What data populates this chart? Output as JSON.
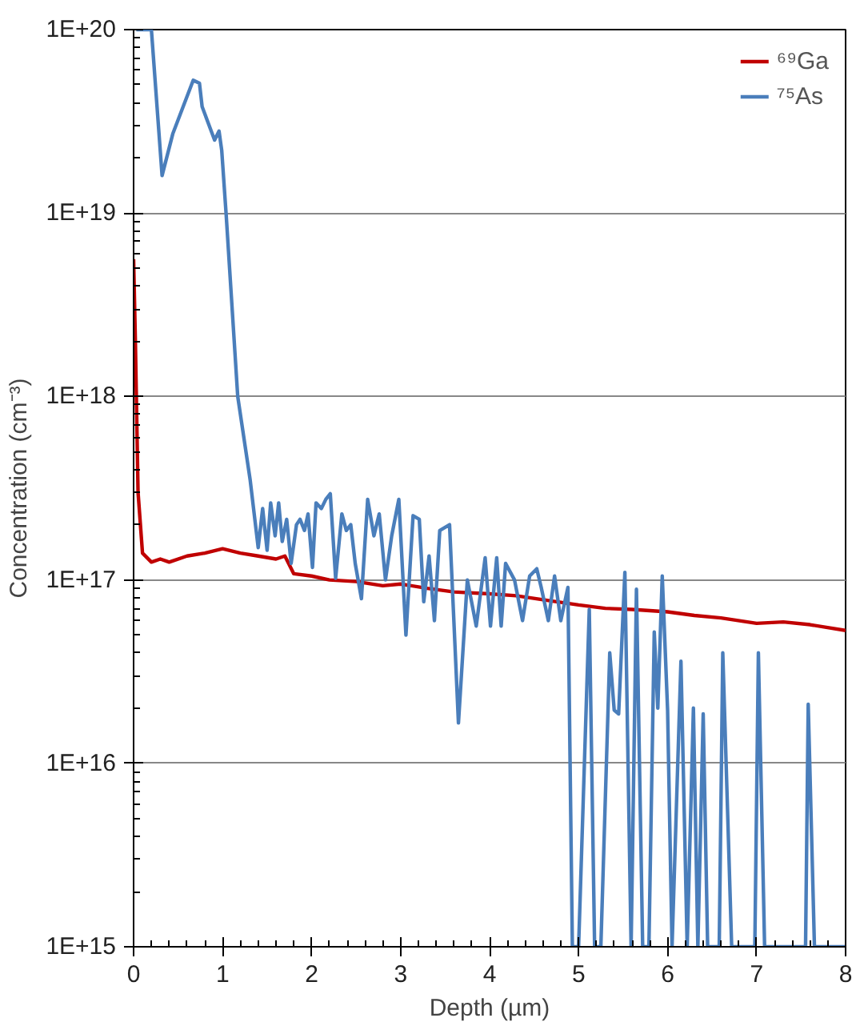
{
  "chart_data": {
    "type": "line",
    "xlabel": "Depth (µm)",
    "ylabel": "Concentration (cm⁻³)",
    "log": "y",
    "grid": "y",
    "legend": "top right",
    "line_style": "solid",
    "marker": "none",
    "xlim": [
      0,
      8
    ],
    "xticks": [
      0,
      1,
      2,
      3,
      4,
      5,
      6,
      7,
      8
    ],
    "ylim": [
      1000000000000000.0,
      1e+20
    ],
    "yticks": [
      {
        "value": 1000000000000000.0,
        "label": "1E+15"
      },
      {
        "value": 1e+16,
        "label": "1E+16"
      },
      {
        "value": 1e+17,
        "label": "1E+17"
      },
      {
        "value": 1e+18,
        "label": "1E+18"
      },
      {
        "value": 1e+19,
        "label": "1E+19"
      },
      {
        "value": 1e+20,
        "label": "1E+20"
      }
    ],
    "series": [
      {
        "name": "⁶⁹Ga",
        "color": "#c00000",
        "x": [
          0,
          0.02,
          0.05,
          0.1,
          0.2,
          0.3,
          0.4,
          0.6,
          0.8,
          1.0,
          1.2,
          1.4,
          1.6,
          1.7,
          1.8,
          2.0,
          2.2,
          2.5,
          2.8,
          3.0,
          3.3,
          3.6,
          4.0,
          4.3,
          4.6,
          5.0,
          5.3,
          5.6,
          6.0,
          6.3,
          6.6,
          7.0,
          7.3,
          7.6,
          8.0
        ],
        "values": [
          5.6e+18,
          2e+18,
          3e+17,
          1.4e+17,
          1.25e+17,
          1.3e+17,
          1.25e+17,
          1.35e+17,
          1.4e+17,
          1.48e+17,
          1.4e+17,
          1.35e+17,
          1.3e+17,
          1.35e+17,
          1.08e+17,
          1.05e+17,
          1e+17,
          9.8e+16,
          9.3e+16,
          9.5e+16,
          9e+16,
          8.6e+16,
          8.4e+16,
          8.2e+16,
          7.8e+16,
          7.3e+16,
          7e+16,
          6.9e+16,
          6.7e+16,
          6.4e+16,
          6.2e+16,
          5.8e+16,
          5.9e+16,
          5.7e+16,
          5.3e+16
        ]
      },
      {
        "name": "⁷⁵As",
        "color": "#4a7ebb",
        "x": [
          0.03,
          0.2,
          0.32,
          0.44,
          0.67,
          0.74,
          0.77,
          0.91,
          0.96,
          0.99,
          1.04,
          1.17,
          1.31,
          1.4,
          1.45,
          1.5,
          1.54,
          1.59,
          1.63,
          1.67,
          1.72,
          1.77,
          1.83,
          1.87,
          1.92,
          1.96,
          2.01,
          2.05,
          2.11,
          2.16,
          2.21,
          2.27,
          2.34,
          2.39,
          2.44,
          2.49,
          2.56,
          2.63,
          2.7,
          2.76,
          2.83,
          2.9,
          2.98,
          3.06,
          3.14,
          3.21,
          3.26,
          3.32,
          3.38,
          3.44,
          3.55,
          3.65,
          3.75,
          3.85,
          3.95,
          4.01,
          4.08,
          4.13,
          4.18,
          4.28,
          4.37,
          4.45,
          4.53,
          4.58,
          4.66,
          4.73,
          4.8,
          4.88,
          4.93,
          5.0,
          5.12,
          5.18,
          5.25,
          5.35,
          5.4,
          5.45,
          5.52,
          5.59,
          5.65,
          5.72,
          5.79,
          5.85,
          5.89,
          5.94,
          6.0,
          6.05,
          6.15,
          6.22,
          6.29,
          6.34,
          6.4,
          6.45,
          6.58,
          6.62,
          6.72,
          6.98,
          7.02,
          7.09,
          7.55,
          7.58,
          7.65,
          8.0
        ],
        "values": [
          1e+20,
          1e+20,
          1.6e+19,
          2.7e+19,
          5.3e+19,
          5.1e+19,
          3.8e+19,
          2.5e+19,
          2.8e+19,
          2.2e+19,
          9.8e+18,
          1e+18,
          3.5e+17,
          1.5e+17,
          2.45e+17,
          1.45e+17,
          2.63e+17,
          1.74e+17,
          2.63e+17,
          1.62e+17,
          2.14e+17,
          1.23e+17,
          2e+17,
          2.14e+17,
          1.86e+17,
          2.29e+17,
          1.17e+17,
          2.63e+17,
          2.45e+17,
          2.75e+17,
          2.95e+17,
          1.02e+17,
          2.29e+17,
          1.86e+17,
          2e+17,
          1.23e+17,
          7.9e+16,
          2.75e+17,
          1.74e+17,
          2.29e+17,
          1e+17,
          1.74e+17,
          2.75e+17,
          5e+16,
          2.24e+17,
          2.14e+17,
          7.6e+16,
          1.35e+17,
          6e+16,
          1.86e+17,
          2e+17,
          1.66e+16,
          1e+17,
          5.6e+16,
          1.32e+17,
          5.6e+16,
          1.32e+17,
          5.6e+16,
          1.23e+17,
          1e+17,
          6e+16,
          1.05e+17,
          1.15e+17,
          9.1e+16,
          6e+16,
          1.05e+17,
          6e+16,
          9.1e+16,
          1000000000000000.0,
          1000000000000000.0,
          6.9e+16,
          1000000000000000.0,
          1000000000000000.0,
          4e+16,
          1.95e+16,
          1.86e+16,
          1.1e+17,
          1000000000000000.0,
          8.9e+16,
          1000000000000000.0,
          1000000000000000.0,
          5.2e+16,
          2e+16,
          1.05e+17,
          1.95e+16,
          1000000000000000.0,
          3.6e+16,
          1000000000000000.0,
          2e+16,
          1000000000000000.0,
          1.86e+16,
          1000000000000000.0,
          1000000000000000.0,
          4e+16,
          1000000000000000.0,
          1000000000000000.0,
          4e+16,
          1000000000000000.0,
          1000000000000000.0,
          2.1e+16,
          1000000000000000.0,
          1000000000000000.0
        ]
      }
    ]
  }
}
